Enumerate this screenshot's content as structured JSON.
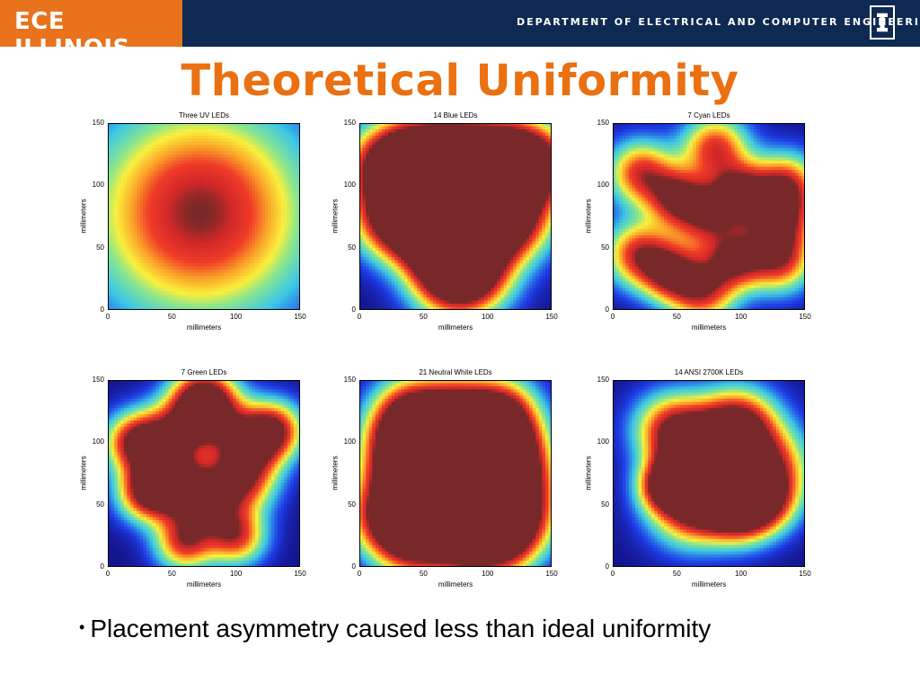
{
  "header": {
    "logo": "ECE ILLINOIS",
    "department": "DEPARTMENT OF ELECTRICAL AND COMPUTER ENGINEERING",
    "mark_icon": "illinois-i-icon"
  },
  "slide": {
    "title": "Theoretical Uniformity",
    "bullet": "Placement asymmetry caused less than ideal uniformity"
  },
  "panels": [
    {
      "title": "Three UV LEDs",
      "xlabel": "millimeters",
      "ylabel": "millimeters"
    },
    {
      "title": "14 Blue LEDs",
      "xlabel": "millimeters",
      "ylabel": "millimeters"
    },
    {
      "title": "7 Cyan LEDs",
      "xlabel": "millimeters",
      "ylabel": "millimeters"
    },
    {
      "title": "7 Green LEDs",
      "xlabel": "millimeters",
      "ylabel": "millimeters"
    },
    {
      "title": "21 Neutral White LEDs",
      "xlabel": "millimeters",
      "ylabel": "millimeters"
    },
    {
      "title": "14 ANSI 2700K LEDs",
      "xlabel": "millimeters",
      "ylabel": "millimeters"
    }
  ],
  "axis": {
    "xticks": [
      "0",
      "50",
      "100",
      "150"
    ],
    "yticks": [
      "150",
      "100",
      "50",
      "0"
    ]
  },
  "colors": {
    "header_bg": "#0f2a52",
    "logo_bg": "#e8731c",
    "title": "#ea7011"
  }
}
